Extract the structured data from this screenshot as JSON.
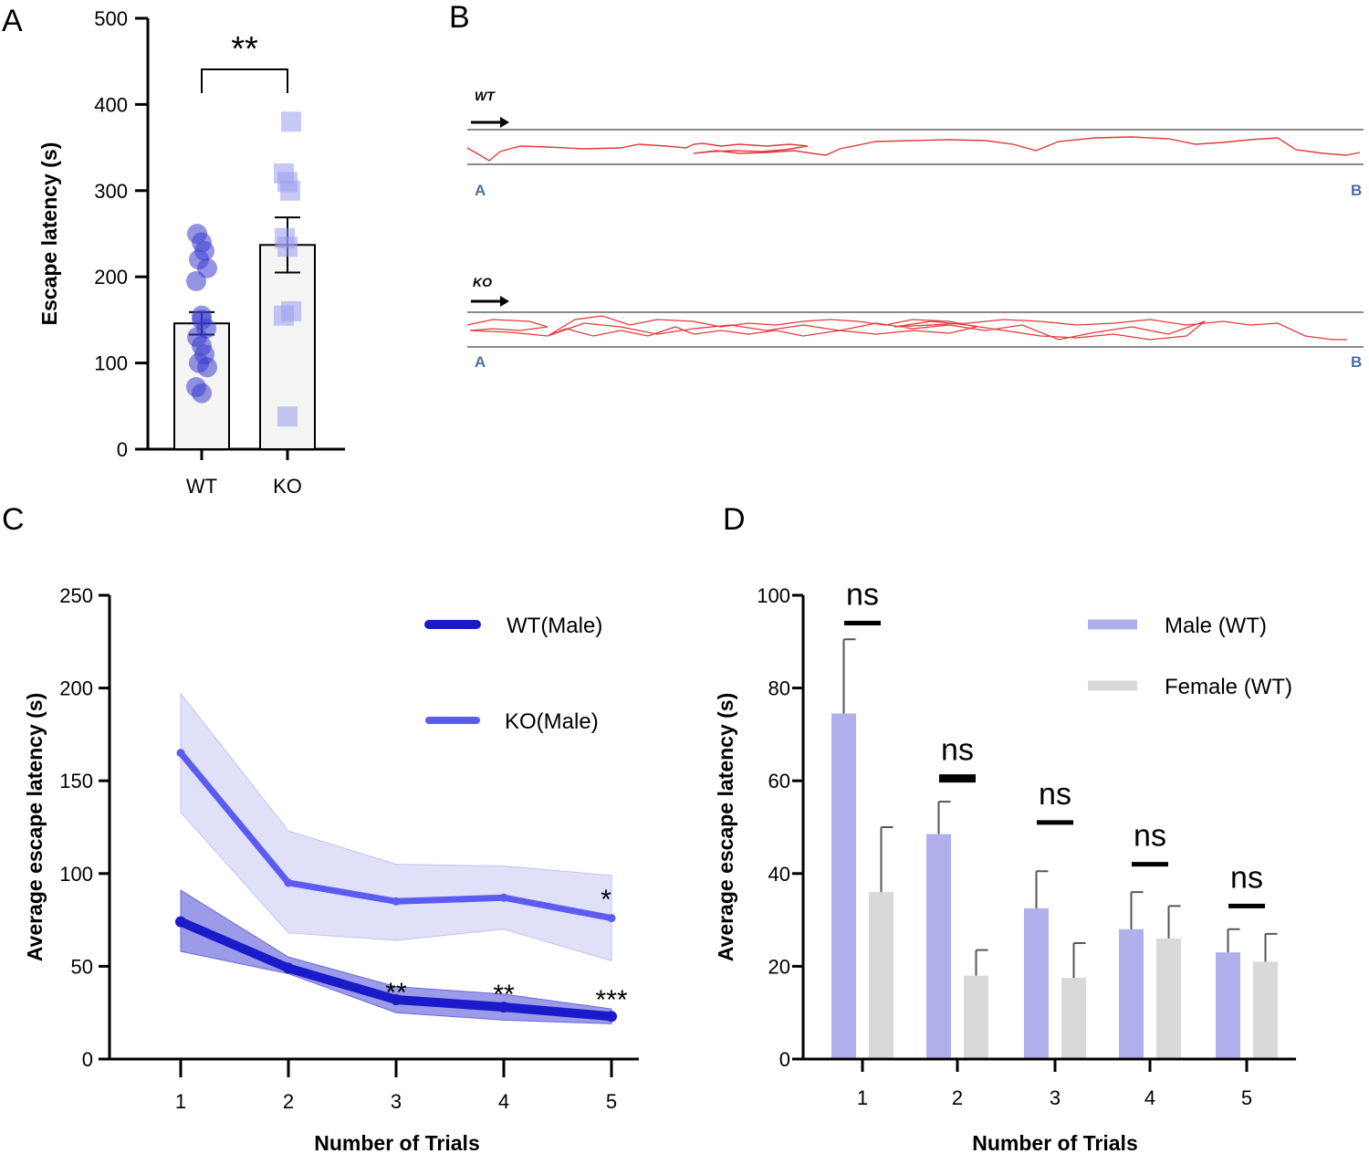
{
  "colors": {
    "wt_dark": "#1a1ac8",
    "ko_light": "#5b5bf0",
    "wt_band": "#8a8ae6",
    "ko_band": "#d6d6f7",
    "panelA_wt": "#3c3cd0",
    "panelA_ko": "#9a9af0",
    "male_bar": "#b0b0ec",
    "female_bar": "#d9d9d9",
    "trace": "#e23b3b",
    "path_label": "#4a6fa5"
  },
  "panels": {
    "a": {
      "letter": "A"
    },
    "b": {
      "letter": "B",
      "wt_label": "WT",
      "ko_label": "KO",
      "start": "A",
      "end": "B"
    },
    "c": {
      "letter": "C"
    },
    "d": {
      "letter": "D"
    }
  },
  "chart_data": [
    {
      "panel": "A",
      "type": "bar",
      "categories": [
        "WT",
        "KO"
      ],
      "values": [
        146,
        237
      ],
      "sem": [
        13,
        32
      ],
      "ylabel": "Escape latency (s)",
      "ylim": [
        0,
        500
      ],
      "yticks": [
        "0",
        "100",
        "200",
        "300",
        "400",
        "500"
      ],
      "significance": "**",
      "points": {
        "WT": [
          65,
          72,
          95,
          100,
          110,
          120,
          130,
          140,
          150,
          155,
          195,
          210,
          220,
          230,
          240,
          250
        ],
        "KO": [
          38,
          155,
          160,
          235,
          245,
          300,
          310,
          320,
          380
        ]
      },
      "marker": {
        "WT": "circle",
        "KO": "square"
      }
    },
    {
      "panel": "C",
      "type": "line",
      "x": [
        1,
        2,
        3,
        4,
        5
      ],
      "xticks": [
        "1",
        "2",
        "3",
        "4",
        "5"
      ],
      "series": [
        {
          "name": "WT(Male)",
          "values": [
            74,
            49,
            32,
            28,
            23
          ],
          "upper": [
            91,
            55,
            39,
            35,
            27
          ],
          "lower": [
            58,
            46,
            25,
            21,
            19
          ]
        },
        {
          "name": "KO(Male)",
          "values": [
            165,
            95,
            85,
            87,
            76
          ],
          "upper": [
            197,
            123,
            105,
            104,
            99
          ],
          "lower": [
            133,
            68,
            64,
            70,
            53
          ]
        }
      ],
      "annotations": [
        {
          "x": 3,
          "y": 36,
          "text": "**"
        },
        {
          "x": 4,
          "y": 35,
          "text": "**"
        },
        {
          "x": 5,
          "y": 32,
          "text": "***"
        },
        {
          "x": 5,
          "y": 86,
          "text": "*"
        }
      ],
      "xlabel": "Number of Trials",
      "ylabel": "Average escape latency (s)",
      "ylim": [
        0,
        250
      ],
      "yticks": [
        "0",
        "50",
        "100",
        "150",
        "200",
        "250"
      ],
      "legend_position": "top-right"
    },
    {
      "panel": "D",
      "type": "bar",
      "categories": [
        "1",
        "2",
        "3",
        "4",
        "5"
      ],
      "series": [
        {
          "name": "Male (WT)",
          "values": [
            74.5,
            48.5,
            32.5,
            28,
            23
          ],
          "err": [
            90.5,
            55.5,
            40.5,
            36,
            28
          ]
        },
        {
          "name": "Female (WT)",
          "values": [
            36,
            18,
            17.5,
            26,
            21
          ],
          "err": [
            50,
            23.5,
            25,
            33,
            27
          ]
        }
      ],
      "annotations": [
        {
          "x": "1",
          "text": "ns",
          "y": 94
        },
        {
          "x": "2",
          "text": "ns",
          "y": 60.5
        },
        {
          "x": "3",
          "text": "ns",
          "y": 51
        },
        {
          "x": "4",
          "text": "ns",
          "y": 42
        },
        {
          "x": "5",
          "text": "ns",
          "y": 33
        }
      ],
      "xlabel": "Number of Trials",
      "ylabel": "Average escape latency (s)",
      "ylim": [
        0,
        100
      ],
      "yticks": [
        "0",
        "20",
        "40",
        "60",
        "80",
        "100"
      ],
      "legend_position": "top-right"
    }
  ]
}
